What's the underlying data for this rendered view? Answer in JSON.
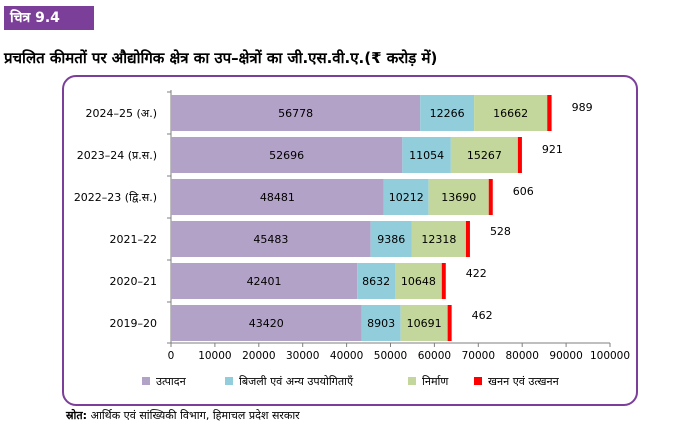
{
  "header": {
    "badge": "चित्र 9.4",
    "title": "प्रचलित कीमतों पर औद्योगिक क्षेत्र का उप–क्षेत्रों का जी.एस.वी.ए.(₹ करोड़ में)"
  },
  "source": {
    "label": "स्रोत:",
    "text": "आर्थिक एवं सांख्यिकी विभाग, हिमाचल प्रदेश सरकार"
  },
  "chart_data": {
    "type": "bar",
    "orientation": "horizontal",
    "stacked": true,
    "categories": [
      "2024–25 (अ.)",
      "2023–24 (प्र.स.)",
      "2022–23 (द्वि.स.)",
      "2021–22",
      "2020–21",
      "2019–20"
    ],
    "series": [
      {
        "name": "उत्पादन",
        "color": "#b3a2c7",
        "values": [
          56778,
          52696,
          48481,
          45483,
          42401,
          43420
        ]
      },
      {
        "name": "बिजली एवं अन्य उपयोगिताएँ",
        "color": "#92cddc",
        "values": [
          12266,
          11054,
          10212,
          9386,
          8632,
          8903
        ]
      },
      {
        "name": "निर्माण",
        "color": "#c3d69b",
        "values": [
          16662,
          15267,
          13690,
          12318,
          10648,
          10691
        ]
      },
      {
        "name": "खनन एवं उत्खनन",
        "color": "#ff0000",
        "values": [
          989,
          921,
          606,
          528,
          422,
          462
        ]
      }
    ],
    "xlim": [
      0,
      100000
    ],
    "xticks": [
      0,
      10000,
      20000,
      30000,
      40000,
      50000,
      60000,
      70000,
      80000,
      90000,
      100000
    ],
    "grid": false,
    "legend_position": "bottom"
  }
}
